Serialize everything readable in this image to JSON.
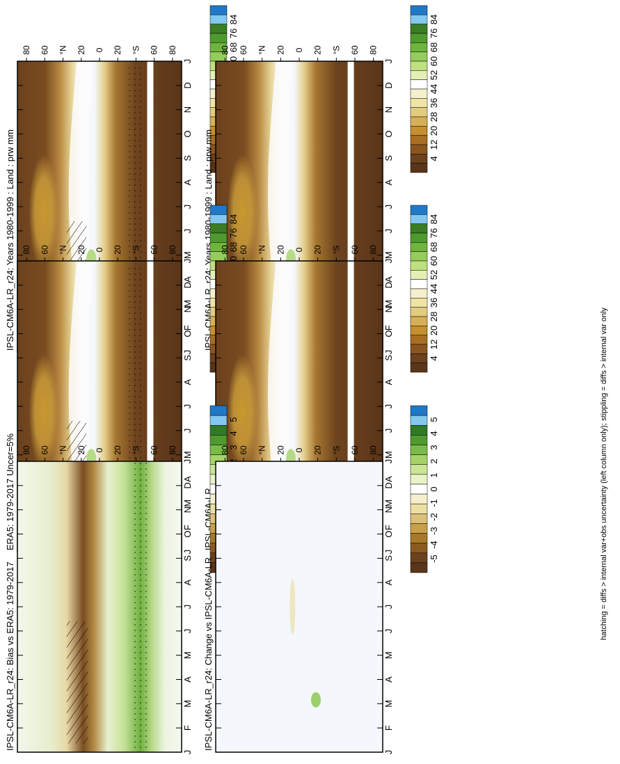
{
  "figure_note": "hatching = diffs > internal var+obs uncertainty (left column only); stippling = diffs > internal var only",
  "chart_data": [
    {
      "type": "heatmap",
      "title": "IPSL-CM6A-LR_r24: Years 1980-1999 : Land : prw mm",
      "xlabel": "",
      "ylabel": "",
      "months": [
        "J",
        "F",
        "M",
        "A",
        "M",
        "J",
        "J",
        "A",
        "S",
        "O",
        "N",
        "D",
        "J"
      ],
      "lat_ticks": [
        "80",
        "60",
        "°N",
        "20",
        "0",
        "20",
        "°S",
        "60",
        "80"
      ],
      "colorbar": {
        "levels": [
          "84",
          "76",
          "68",
          "60",
          "52",
          "44",
          "36",
          "28",
          "20",
          "12",
          "4"
        ],
        "colors": [
          "#1f78c8",
          "#82c8ef",
          "#3a7d24",
          "#4f9a2f",
          "#6fb43e",
          "#95cc5a",
          "#bfe07e",
          "#e3f0b5",
          "#ffffff",
          "#f6efcc",
          "#efe3a6",
          "#e3cc80",
          "#d6b055",
          "#c5902d",
          "#a86e22",
          "#8a5520",
          "#6b411e",
          "#5a3519"
        ]
      }
    },
    {
      "type": "heatmap",
      "title": "IPSL-CM6A-LR_r24: Years 1980-1999 : Land : prw mm",
      "xlabel": "",
      "ylabel": "",
      "months": [
        "J",
        "F",
        "M",
        "A",
        "M",
        "J",
        "J",
        "A",
        "S",
        "O",
        "N",
        "D",
        "J"
      ],
      "lat_ticks": [
        "80",
        "60",
        "°N",
        "20",
        "0",
        "20",
        "°S",
        "60",
        "80"
      ],
      "colorbar": {
        "levels": [
          "84",
          "76",
          "68",
          "60",
          "52",
          "44",
          "36",
          "28",
          "20",
          "12",
          "4"
        ],
        "colors": [
          "#1f78c8",
          "#82c8ef",
          "#3a7d24",
          "#4f9a2f",
          "#6fb43e",
          "#95cc5a",
          "#bfe07e",
          "#e3f0b5",
          "#ffffff",
          "#f6efcc",
          "#efe3a6",
          "#e3cc80",
          "#d6b055",
          "#c5902d",
          "#a86e22",
          "#8a5520",
          "#6b411e",
          "#5a3519"
        ]
      }
    },
    {
      "type": "heatmap",
      "title": "ERA5: 1979-2017 Uncer=5%",
      "xlabel": "",
      "ylabel": "",
      "months": [
        "J",
        "F",
        "M",
        "A",
        "M",
        "J",
        "J",
        "A",
        "S",
        "O",
        "N",
        "D",
        "J"
      ],
      "lat_ticks": [
        "80",
        "60",
        "°N",
        "20",
        "0",
        "20",
        "°S",
        "60",
        "80"
      ],
      "colorbar": {
        "levels": [
          "84",
          "76",
          "68",
          "60",
          "52",
          "44",
          "36",
          "28",
          "20",
          "12",
          "4"
        ],
        "colors": [
          "#1f78c8",
          "#82c8ef",
          "#3a7d24",
          "#4f9a2f",
          "#6fb43e",
          "#95cc5a",
          "#bfe07e",
          "#e3f0b5",
          "#ffffff",
          "#f6efcc",
          "#efe3a6",
          "#e3cc80",
          "#d6b055",
          "#c5902d",
          "#a86e22",
          "#8a5520",
          "#6b411e",
          "#5a3519"
        ]
      }
    },
    {
      "type": "heatmap",
      "title": "IPSL-CM6A-LR",
      "xlabel": "",
      "ylabel": "",
      "months": [
        "J",
        "F",
        "M",
        "A",
        "M",
        "J",
        "J",
        "A",
        "S",
        "O",
        "N",
        "D",
        "J"
      ],
      "lat_ticks": [
        "80",
        "60",
        "°N",
        "20",
        "0",
        "20",
        "°S",
        "60",
        "80"
      ],
      "colorbar": {
        "levels": [
          "84",
          "76",
          "68",
          "60",
          "52",
          "44",
          "36",
          "28",
          "20",
          "12",
          "4"
        ],
        "colors": [
          "#1f78c8",
          "#82c8ef",
          "#3a7d24",
          "#4f9a2f",
          "#6fb43e",
          "#95cc5a",
          "#bfe07e",
          "#e3f0b5",
          "#ffffff",
          "#f6efcc",
          "#efe3a6",
          "#e3cc80",
          "#d6b055",
          "#c5902d",
          "#a86e22",
          "#8a5520",
          "#6b411e",
          "#5a3519"
        ]
      }
    },
    {
      "type": "heatmap",
      "title": "IPSL-CM6A-LR_r24: Bias vs ERA5: 1979-2017",
      "xlabel": "",
      "ylabel": "",
      "months": [
        "J",
        "F",
        "M",
        "A",
        "M",
        "J",
        "J",
        "A",
        "S",
        "O",
        "N",
        "D",
        "J"
      ],
      "lat_ticks": [
        "80",
        "60",
        "°N",
        "20",
        "0",
        "20",
        "°S",
        "60",
        "80"
      ],
      "colorbar": {
        "levels": [
          "5",
          "4",
          "3",
          "2",
          "1",
          "0",
          "-1",
          "-2",
          "-3",
          "-4",
          "-5"
        ],
        "colors": [
          "#1f78c8",
          "#82c8ef",
          "#2f7a26",
          "#4f9a2f",
          "#79bb46",
          "#a6d26a",
          "#cbe596",
          "#e8f3c7",
          "#ffffff",
          "#f5efcd",
          "#ecdfa4",
          "#dcc07a",
          "#c9a04a",
          "#a97929",
          "#8a5a1f",
          "#6b411e",
          "#5a3519"
        ]
      }
    },
    {
      "type": "heatmap",
      "title": "IPSL-CM6A-LR_r24: Change vs IPSL-CM6A-LR",
      "xlabel": "",
      "ylabel": "",
      "months": [
        "J",
        "F",
        "M",
        "A",
        "M",
        "J",
        "J",
        "A",
        "S",
        "O",
        "N",
        "D",
        "J"
      ],
      "lat_ticks": [
        "80",
        "60",
        "°N",
        "20",
        "0",
        "20",
        "°S",
        "60",
        "80"
      ],
      "colorbar": {
        "levels": [
          "5",
          "4",
          "3",
          "2",
          "1",
          "0",
          "-1",
          "-2",
          "-3",
          "-4",
          "-5"
        ],
        "colors": [
          "#1f78c8",
          "#82c8ef",
          "#2f7a26",
          "#4f9a2f",
          "#79bb46",
          "#a6d26a",
          "#cbe596",
          "#e8f3c7",
          "#ffffff",
          "#f5efcd",
          "#ecdfa4",
          "#dcc07a",
          "#c9a04a",
          "#a97929",
          "#8a5a1f",
          "#6b411e",
          "#5a3519"
        ]
      }
    }
  ]
}
